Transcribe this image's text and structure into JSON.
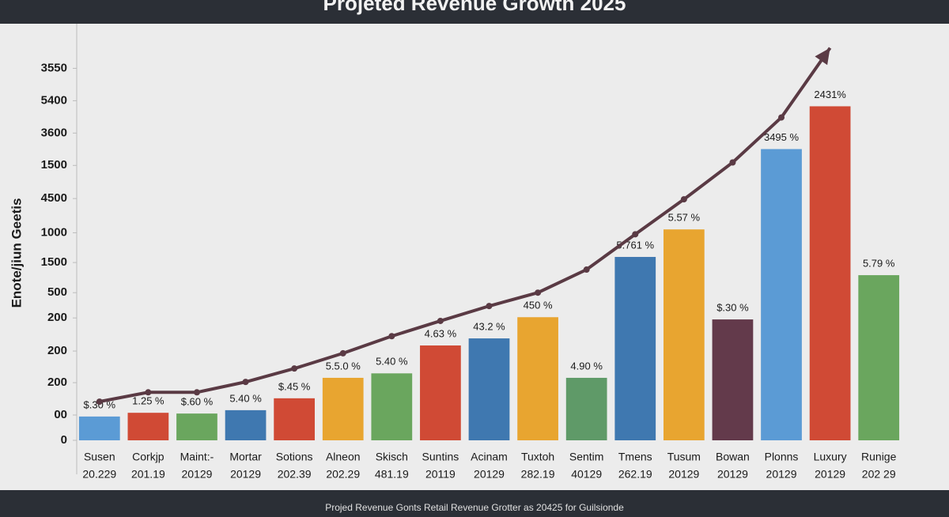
{
  "chart_data": {
    "type": "bar",
    "title": "Projeted Revenue Growth 2025",
    "y_label": "Enote/jiun Geetis",
    "footer": "Projed Revenue Gonts Retail  Revenue Grotter as 20425 for Guilsionde",
    "categories": [
      "Susen",
      "Corkjp",
      "Maint:-",
      "Mortar",
      "Sotions",
      "Alneon",
      "Skisch",
      "Suntins",
      "Acinam",
      "Tuxtoh",
      "Sentim",
      "Tmens",
      "Tusum",
      "Bowan",
      "Plonns",
      "Luxury",
      "Runige"
    ],
    "sublabels": [
      "20.229",
      "201.19",
      "20129",
      "20129",
      "202.39",
      "202.29",
      "481.19",
      "20119",
      "20129",
      "282.19",
      "40129",
      "262.19",
      "20129",
      "20129",
      "20129",
      "20129",
      "202 29"
    ],
    "values": [
      6.4,
      7.4,
      7.2,
      8.1,
      11.3,
      16.8,
      18.0,
      25.5,
      27.4,
      33.1,
      16.8,
      49.3,
      56.7,
      32.5,
      78.3,
      89.8,
      44.4
    ],
    "colors": [
      "#5b9bd5",
      "#d04a35",
      "#6aa65e",
      "#3f78b0",
      "#d04a35",
      "#e8a530",
      "#6aa65e",
      "#d04a35",
      "#3f78b0",
      "#e8a530",
      "#5f9a68",
      "#3f78b0",
      "#e8a530",
      "#633a4b",
      "#5b9bd5",
      "#d04a35",
      "#6aa65e"
    ],
    "annotations": [
      "$.30 %",
      "1.25 %",
      "$.60 %",
      "5.40 %",
      "$.45 %",
      "5.5.0 %",
      "5.40 %",
      "4.63 %",
      "43.2 %",
      "450 %",
      "4.90 %",
      "5.761 %",
      "5.57 %",
      "$.30 %",
      "3495 %",
      "2431%",
      "5.79 %"
    ],
    "trend": {
      "color": "#5a3a44",
      "values": [
        10.4,
        12.9,
        12.9,
        15.7,
        19.3,
        23.4,
        28.0,
        32.1,
        36.1,
        39.7,
        45.9,
        55.4,
        64.8,
        74.7,
        86.8,
        105.5,
        null
      ]
    },
    "ylim": [
      0,
      112
    ],
    "yticks": [
      {
        "value": 100,
        "label": "3550"
      },
      {
        "value": 91.3,
        "label": "5400"
      },
      {
        "value": 82.6,
        "label": "3600"
      },
      {
        "value": 73.9,
        "label": "1500"
      },
      {
        "value": 65.0,
        "label": "4500"
      },
      {
        "value": 55.8,
        "label": "1000"
      },
      {
        "value": 47.8,
        "label": "1500"
      },
      {
        "value": 39.7,
        "label": "500"
      },
      {
        "value": 32.9,
        "label": "200"
      },
      {
        "value": 24.0,
        "label": "200"
      },
      {
        "value": 15.5,
        "label": "200"
      },
      {
        "value": 6.8,
        "label": "00"
      },
      0
    ],
    "grid": false
  }
}
